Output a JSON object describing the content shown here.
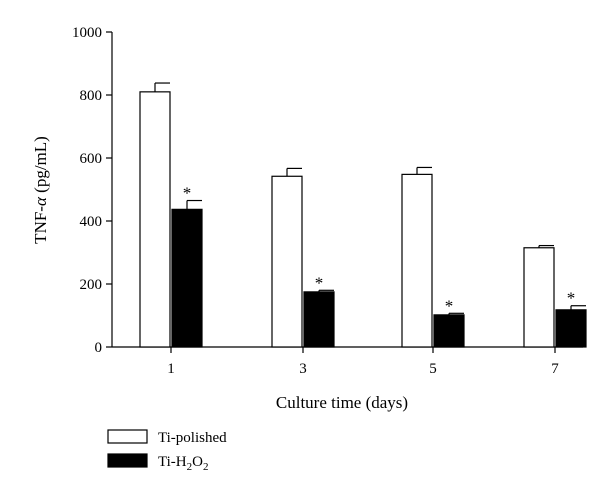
{
  "chart_data": {
    "type": "bar",
    "title": "",
    "xlabel": "Culture time (days)",
    "ylabel_main": "TNF-",
    "ylabel_greek": "α",
    "ylabel_unit": " (pg/mL)",
    "ylim": [
      0,
      1000
    ],
    "yticks": [
      "0",
      "200",
      "400",
      "600",
      "800",
      "1000"
    ],
    "categories": [
      "1",
      "3",
      "5",
      "7"
    ],
    "series": [
      {
        "name": "Ti-polished",
        "fill": "#ffffff",
        "values": [
          810,
          542,
          548,
          315
        ],
        "errors": [
          28,
          25,
          22,
          7
        ],
        "significance": [
          "",
          "",
          "",
          ""
        ]
      },
      {
        "name_main": "Ti-H",
        "name_sub1": "2",
        "name_mid": "O",
        "name_sub2": "2",
        "fill": "#000000",
        "values": [
          437,
          175,
          102,
          118
        ],
        "errors": [
          28,
          5,
          5,
          13
        ],
        "significance": [
          "*",
          "*",
          "*",
          "*"
        ]
      }
    ],
    "legend_position": "bottom-left",
    "grid": false
  }
}
